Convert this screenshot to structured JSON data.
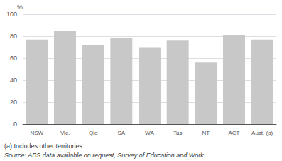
{
  "chart_data": {
    "type": "bar",
    "categories": [
      "NSW",
      "Vic.",
      "Qld",
      "SA",
      "WA",
      "Tas",
      "NT",
      "ACT",
      "Aust. (a)"
    ],
    "values": [
      77.0,
      84.5,
      72.0,
      78.0,
      70.0,
      76.0,
      56.0,
      81.0,
      77.0
    ],
    "color": "#c8c8c8",
    "ylabel": "%",
    "ylim": [
      0,
      100
    ],
    "yticks": [
      0,
      20,
      40,
      60,
      80,
      100
    ],
    "grid": true,
    "annotations": [
      "(a) Includes other territories",
      "Source: ABS data available on request, Survey of Education and Work"
    ]
  }
}
